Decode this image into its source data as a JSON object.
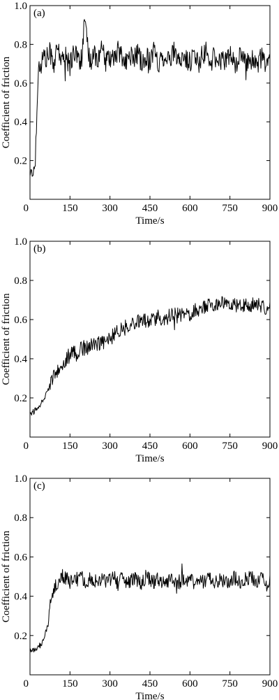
{
  "chart_data": [
    {
      "type": "line",
      "panel_label": "(a)",
      "xlabel": "Time/s",
      "ylabel": "Coefficient of friction",
      "xlim": [
        0,
        900
      ],
      "ylim": [
        0,
        1.0
      ],
      "xticks": [
        0,
        150,
        300,
        450,
        600,
        750,
        900
      ],
      "yticks": [
        0,
        0.2,
        0.4,
        0.6,
        0.8,
        1.0
      ],
      "xtick_labels": [
        "0",
        "150",
        "300",
        "450",
        "600",
        "750",
        "900"
      ],
      "ytick_labels": [
        "0",
        "0.2",
        "0.4",
        "0.6",
        "0.8",
        "1.0"
      ],
      "grid": false,
      "x": [
        0,
        5,
        10,
        15,
        20,
        25,
        30,
        35,
        40,
        50,
        60,
        75,
        90,
        105,
        120,
        135,
        150,
        165,
        180,
        195,
        205,
        210,
        225,
        240,
        255,
        270,
        285,
        300,
        315,
        330,
        345,
        360,
        375,
        390,
        405,
        420,
        435,
        450,
        465,
        480,
        495,
        510,
        525,
        540,
        555,
        570,
        585,
        600,
        615,
        630,
        645,
        660,
        675,
        690,
        705,
        720,
        735,
        750,
        765,
        780,
        795,
        810,
        825,
        840,
        855,
        870,
        885,
        900
      ],
      "y": [
        0.13,
        0.15,
        0.12,
        0.16,
        0.18,
        0.45,
        0.62,
        0.7,
        0.68,
        0.75,
        0.72,
        0.76,
        0.7,
        0.78,
        0.71,
        0.74,
        0.69,
        0.77,
        0.73,
        0.72,
        0.93,
        0.85,
        0.7,
        0.76,
        0.72,
        0.78,
        0.7,
        0.74,
        0.71,
        0.77,
        0.73,
        0.7,
        0.75,
        0.72,
        0.76,
        0.69,
        0.74,
        0.72,
        0.77,
        0.7,
        0.73,
        0.75,
        0.71,
        0.76,
        0.7,
        0.74,
        0.72,
        0.71,
        0.75,
        0.7,
        0.73,
        0.76,
        0.69,
        0.74,
        0.72,
        0.71,
        0.73,
        0.75,
        0.7,
        0.72,
        0.74,
        0.69,
        0.73,
        0.71,
        0.7,
        0.74,
        0.69,
        0.72
      ]
    },
    {
      "type": "line",
      "panel_label": "(b)",
      "xlabel": "Time/s",
      "ylabel": "Coefficient of friction",
      "xlim": [
        0,
        900
      ],
      "ylim": [
        0,
        1.0
      ],
      "xticks": [
        0,
        150,
        300,
        450,
        600,
        750,
        900
      ],
      "yticks": [
        0,
        0.2,
        0.4,
        0.6,
        0.8,
        1.0
      ],
      "xtick_labels": [
        "0",
        "150",
        "300",
        "450",
        "600",
        "750",
        "900"
      ],
      "ytick_labels": [
        "0",
        "0.2",
        "0.4",
        "0.6",
        "0.8",
        "1.0"
      ],
      "grid": false,
      "x": [
        0,
        15,
        30,
        45,
        60,
        75,
        90,
        105,
        120,
        135,
        150,
        165,
        180,
        195,
        210,
        225,
        240,
        255,
        270,
        285,
        300,
        315,
        330,
        345,
        360,
        375,
        390,
        405,
        420,
        435,
        450,
        465,
        480,
        495,
        510,
        525,
        540,
        555,
        570,
        585,
        600,
        615,
        630,
        645,
        660,
        675,
        690,
        705,
        720,
        735,
        750,
        765,
        780,
        795,
        810,
        825,
        840,
        855,
        870,
        885,
        900
      ],
      "y": [
        0.12,
        0.13,
        0.15,
        0.18,
        0.22,
        0.27,
        0.31,
        0.35,
        0.38,
        0.4,
        0.42,
        0.43,
        0.44,
        0.45,
        0.46,
        0.46,
        0.47,
        0.48,
        0.48,
        0.49,
        0.5,
        0.52,
        0.54,
        0.56,
        0.57,
        0.58,
        0.58,
        0.59,
        0.59,
        0.6,
        0.6,
        0.6,
        0.61,
        0.61,
        0.61,
        0.62,
        0.62,
        0.62,
        0.63,
        0.63,
        0.63,
        0.64,
        0.65,
        0.66,
        0.67,
        0.67,
        0.68,
        0.68,
        0.68,
        0.68,
        0.68,
        0.67,
        0.68,
        0.68,
        0.67,
        0.68,
        0.67,
        0.67,
        0.67,
        0.66,
        0.66
      ]
    },
    {
      "type": "line",
      "panel_label": "(c)",
      "xlabel": "Time/s",
      "ylabel": "Coefficient of friction",
      "xlim": [
        0,
        900
      ],
      "ylim": [
        0,
        1.0
      ],
      "xticks": [
        0,
        150,
        300,
        450,
        600,
        750,
        900
      ],
      "yticks": [
        0,
        0.2,
        0.4,
        0.6,
        0.8,
        1.0
      ],
      "xtick_labels": [
        "0",
        "150",
        "300",
        "450",
        "600",
        "750",
        "900"
      ],
      "ytick_labels": [
        "0",
        "0.2",
        "0.4",
        "0.6",
        "0.8",
        "1.0"
      ],
      "grid": false,
      "x": [
        0,
        10,
        20,
        30,
        40,
        50,
        60,
        65,
        70,
        80,
        90,
        100,
        110,
        120,
        135,
        150,
        165,
        180,
        195,
        210,
        225,
        240,
        255,
        270,
        285,
        300,
        315,
        330,
        345,
        360,
        375,
        390,
        405,
        420,
        435,
        450,
        465,
        480,
        495,
        510,
        525,
        540,
        555,
        570,
        585,
        600,
        615,
        630,
        645,
        660,
        675,
        690,
        705,
        720,
        735,
        750,
        765,
        780,
        795,
        810,
        825,
        840,
        855,
        870,
        885,
        900
      ],
      "y": [
        0.12,
        0.13,
        0.12,
        0.14,
        0.15,
        0.18,
        0.22,
        0.25,
        0.3,
        0.38,
        0.44,
        0.47,
        0.48,
        0.5,
        0.49,
        0.47,
        0.5,
        0.48,
        0.49,
        0.47,
        0.5,
        0.48,
        0.46,
        0.49,
        0.47,
        0.48,
        0.5,
        0.46,
        0.49,
        0.48,
        0.47,
        0.49,
        0.48,
        0.46,
        0.5,
        0.48,
        0.47,
        0.49,
        0.48,
        0.47,
        0.49,
        0.48,
        0.46,
        0.49,
        0.48,
        0.47,
        0.49,
        0.48,
        0.47,
        0.48,
        0.49,
        0.47,
        0.48,
        0.49,
        0.47,
        0.48,
        0.5,
        0.48,
        0.47,
        0.49,
        0.5,
        0.48,
        0.47,
        0.49,
        0.46,
        0.47
      ]
    }
  ]
}
